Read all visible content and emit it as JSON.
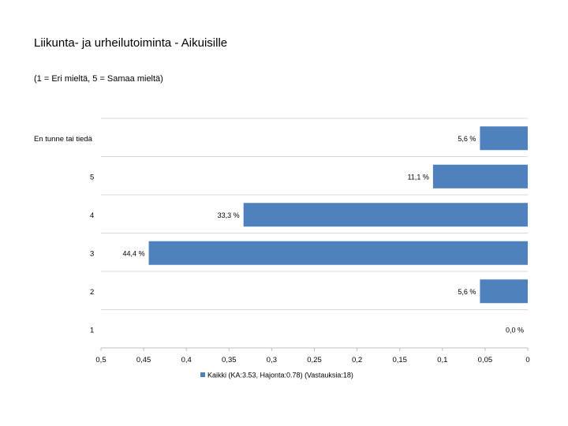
{
  "chart_data": {
    "type": "bar",
    "orientation": "horizontal",
    "x_reversed": true,
    "title": "Liikunta- ja urheilutoiminta - Aikuisille",
    "subtitle": "(1 = Eri mieltä, 5 = Samaa mieltä)",
    "categories": [
      "En tunne tai tiedä",
      "5",
      "4",
      "3",
      "2",
      "1"
    ],
    "series": [
      {
        "name": "Kaikki (KA:3.53, Hajonta:0.78) (Vastauksia:18)",
        "values": [
          0.056,
          0.111,
          0.333,
          0.444,
          0.056,
          0.0
        ],
        "labels": [
          "5,6 %",
          "11,1 %",
          "33,3 %",
          "44,4 %",
          "5,6 %",
          "0,0 %"
        ]
      }
    ],
    "xlim": [
      0.5,
      0
    ],
    "x_ticks": [
      0.5,
      0.45,
      0.4,
      0.35,
      0.3,
      0.25,
      0.2,
      0.15,
      0.1,
      0.05,
      0
    ],
    "x_tick_labels": [
      "0,5",
      "0,45",
      "0,4",
      "0,35",
      "0,3",
      "0,25",
      "0,2",
      "0,15",
      "0,1",
      "0,05",
      "0"
    ],
    "grid": true,
    "legend_position": "bottom",
    "colors": {
      "bar": "#4f81bd",
      "grid": "#d9d9d9",
      "axis": "#bfbfbf"
    }
  }
}
